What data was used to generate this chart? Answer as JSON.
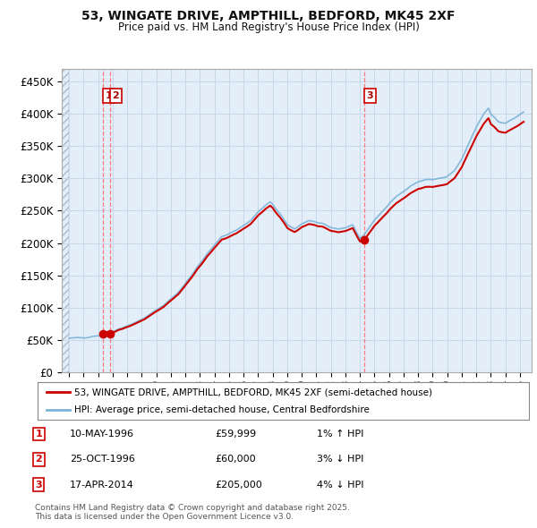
{
  "title1": "53, WINGATE DRIVE, AMPTHILL, BEDFORD, MK45 2XF",
  "title2": "Price paid vs. HM Land Registry's House Price Index (HPI)",
  "legend_line1": "53, WINGATE DRIVE, AMPTHILL, BEDFORD, MK45 2XF (semi-detached house)",
  "legend_line2": "HPI: Average price, semi-detached house, Central Bedfordshire",
  "footnote": "Contains HM Land Registry data © Crown copyright and database right 2025.\nThis data is licensed under the Open Government Licence v3.0.",
  "transactions": [
    {
      "num": 1,
      "date": "10-MAY-1996",
      "price": 59999,
      "rel": "1% ↑ HPI",
      "x": 1996.36
    },
    {
      "num": 2,
      "date": "25-OCT-1996",
      "price": 60000,
      "rel": "3% ↓ HPI",
      "x": 1996.82
    },
    {
      "num": 3,
      "date": "17-APR-2014",
      "price": 205000,
      "rel": "4% ↓ HPI",
      "x": 2014.29
    }
  ],
  "sale_marker_color": "#cc0000",
  "hpi_line_color": "#7ab3d8",
  "price_line_color": "#cc0000",
  "grid_color": "#c8d8e8",
  "bg_color": "#ffffff",
  "plot_bg_color": "#e4eef8",
  "ylim": [
    0,
    470000
  ],
  "xlim_start": 1993.5,
  "xlim_end": 2025.8,
  "yticks": [
    0,
    50000,
    100000,
    150000,
    200000,
    250000,
    300000,
    350000,
    400000,
    450000
  ],
  "xticks": [
    1994,
    1995,
    1996,
    1997,
    1998,
    1999,
    2000,
    2001,
    2002,
    2003,
    2004,
    2005,
    2006,
    2007,
    2008,
    2009,
    2010,
    2011,
    2012,
    2013,
    2014,
    2015,
    2016,
    2017,
    2018,
    2019,
    2020,
    2021,
    2022,
    2023,
    2024,
    2025
  ],
  "hpi_base_1996oct": 61800,
  "sale1_price": 59999,
  "sale1_x": 1996.36,
  "sale2_price": 60000,
  "sale2_x": 1996.82,
  "sale3_price": 205000,
  "sale3_x": 2014.29
}
